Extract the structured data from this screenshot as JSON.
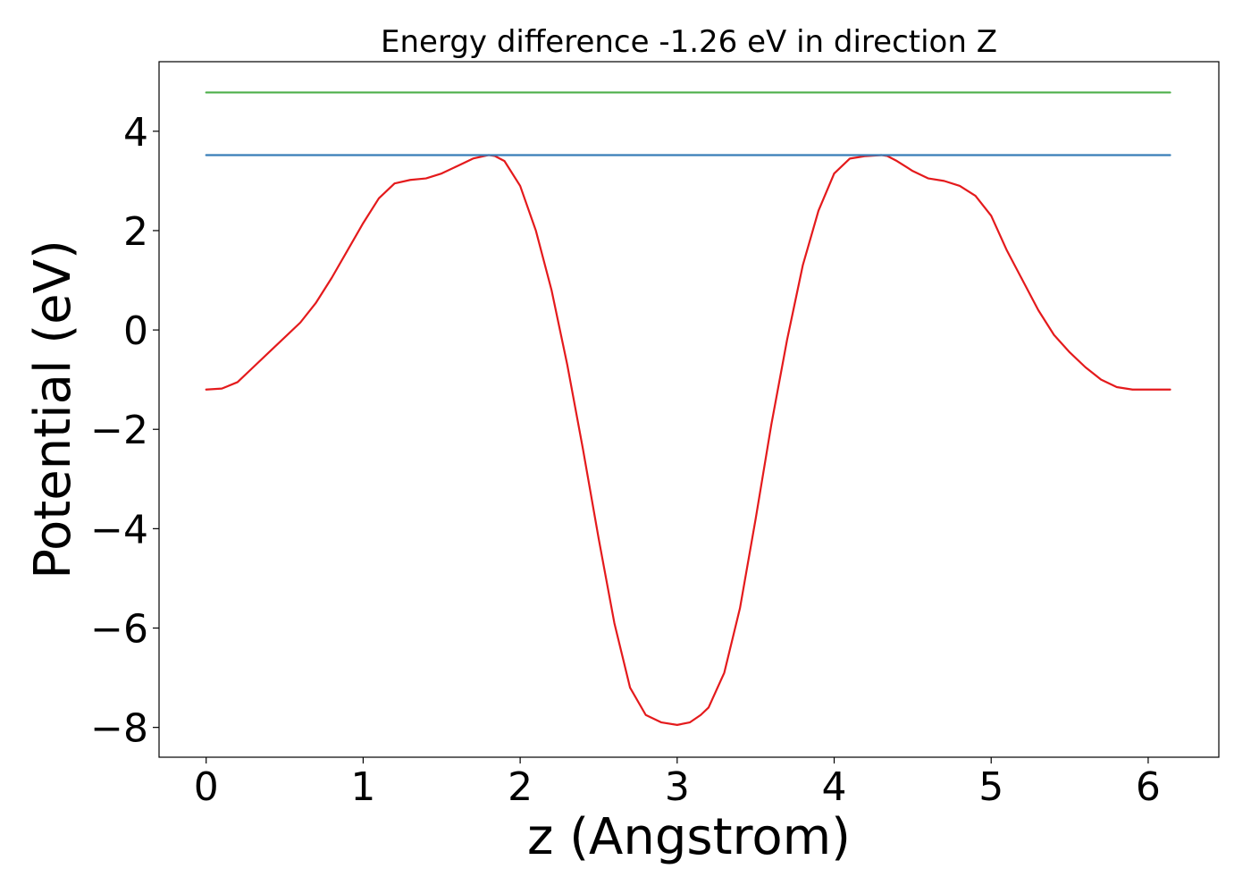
{
  "chart_data": {
    "type": "line",
    "title": "Energy difference -1.26 eV in direction Z",
    "xlabel": "z (Angstrom)",
    "ylabel": "Potential (eV)",
    "xlim": [
      -0.3,
      6.45
    ],
    "ylim": [
      -8.6,
      5.4
    ],
    "xticks": [
      0,
      1,
      2,
      3,
      4,
      5,
      6
    ],
    "xtick_labels": [
      "0",
      "1",
      "2",
      "3",
      "4",
      "5",
      "6"
    ],
    "yticks": [
      -8,
      -6,
      -4,
      -2,
      0,
      2,
      4
    ],
    "ytick_labels": [
      "−8",
      "−6",
      "−4",
      "−2",
      "0",
      "2",
      "4"
    ],
    "grid": false,
    "series": [
      {
        "color": "#e41a1c",
        "x": [
          0.0,
          0.1,
          0.2,
          0.3,
          0.4,
          0.5,
          0.6,
          0.7,
          0.8,
          0.9,
          1.0,
          1.1,
          1.2,
          1.3,
          1.4,
          1.5,
          1.6,
          1.7,
          1.8,
          1.84,
          1.9,
          2.0,
          2.1,
          2.2,
          2.3,
          2.4,
          2.5,
          2.6,
          2.7,
          2.8,
          2.9,
          3.0,
          3.08,
          3.15,
          3.2,
          3.3,
          3.4,
          3.5,
          3.6,
          3.7,
          3.8,
          3.9,
          4.0,
          4.1,
          4.2,
          4.3,
          4.34,
          4.4,
          4.5,
          4.6,
          4.7,
          4.8,
          4.9,
          5.0,
          5.1,
          5.2,
          5.3,
          5.4,
          5.5,
          5.6,
          5.7,
          5.8,
          5.9,
          6.0,
          6.1,
          6.14
        ],
        "y": [
          -1.2,
          -1.18,
          -1.05,
          -0.75,
          -0.45,
          -0.15,
          0.15,
          0.55,
          1.05,
          1.6,
          2.15,
          2.65,
          2.95,
          3.02,
          3.05,
          3.15,
          3.3,
          3.45,
          3.52,
          3.5,
          3.4,
          2.9,
          2.0,
          0.8,
          -0.7,
          -2.4,
          -4.2,
          -5.9,
          -7.2,
          -7.75,
          -7.9,
          -7.95,
          -7.9,
          -7.75,
          -7.6,
          -6.9,
          -5.6,
          -3.8,
          -1.9,
          -0.2,
          1.3,
          2.4,
          3.15,
          3.45,
          3.5,
          3.52,
          3.5,
          3.4,
          3.2,
          3.05,
          3.0,
          2.9,
          2.7,
          2.3,
          1.6,
          1.0,
          0.4,
          -0.1,
          -0.45,
          -0.75,
          -1.0,
          -1.15,
          -1.2,
          -1.2,
          -1.2,
          -1.2
        ]
      },
      {
        "color": "#377eb8",
        "x": [
          0.0,
          6.14
        ],
        "y": [
          3.52,
          3.52
        ]
      },
      {
        "color": "#4daf4a",
        "x": [
          0.0,
          6.14
        ],
        "y": [
          4.78,
          4.78
        ]
      }
    ]
  }
}
